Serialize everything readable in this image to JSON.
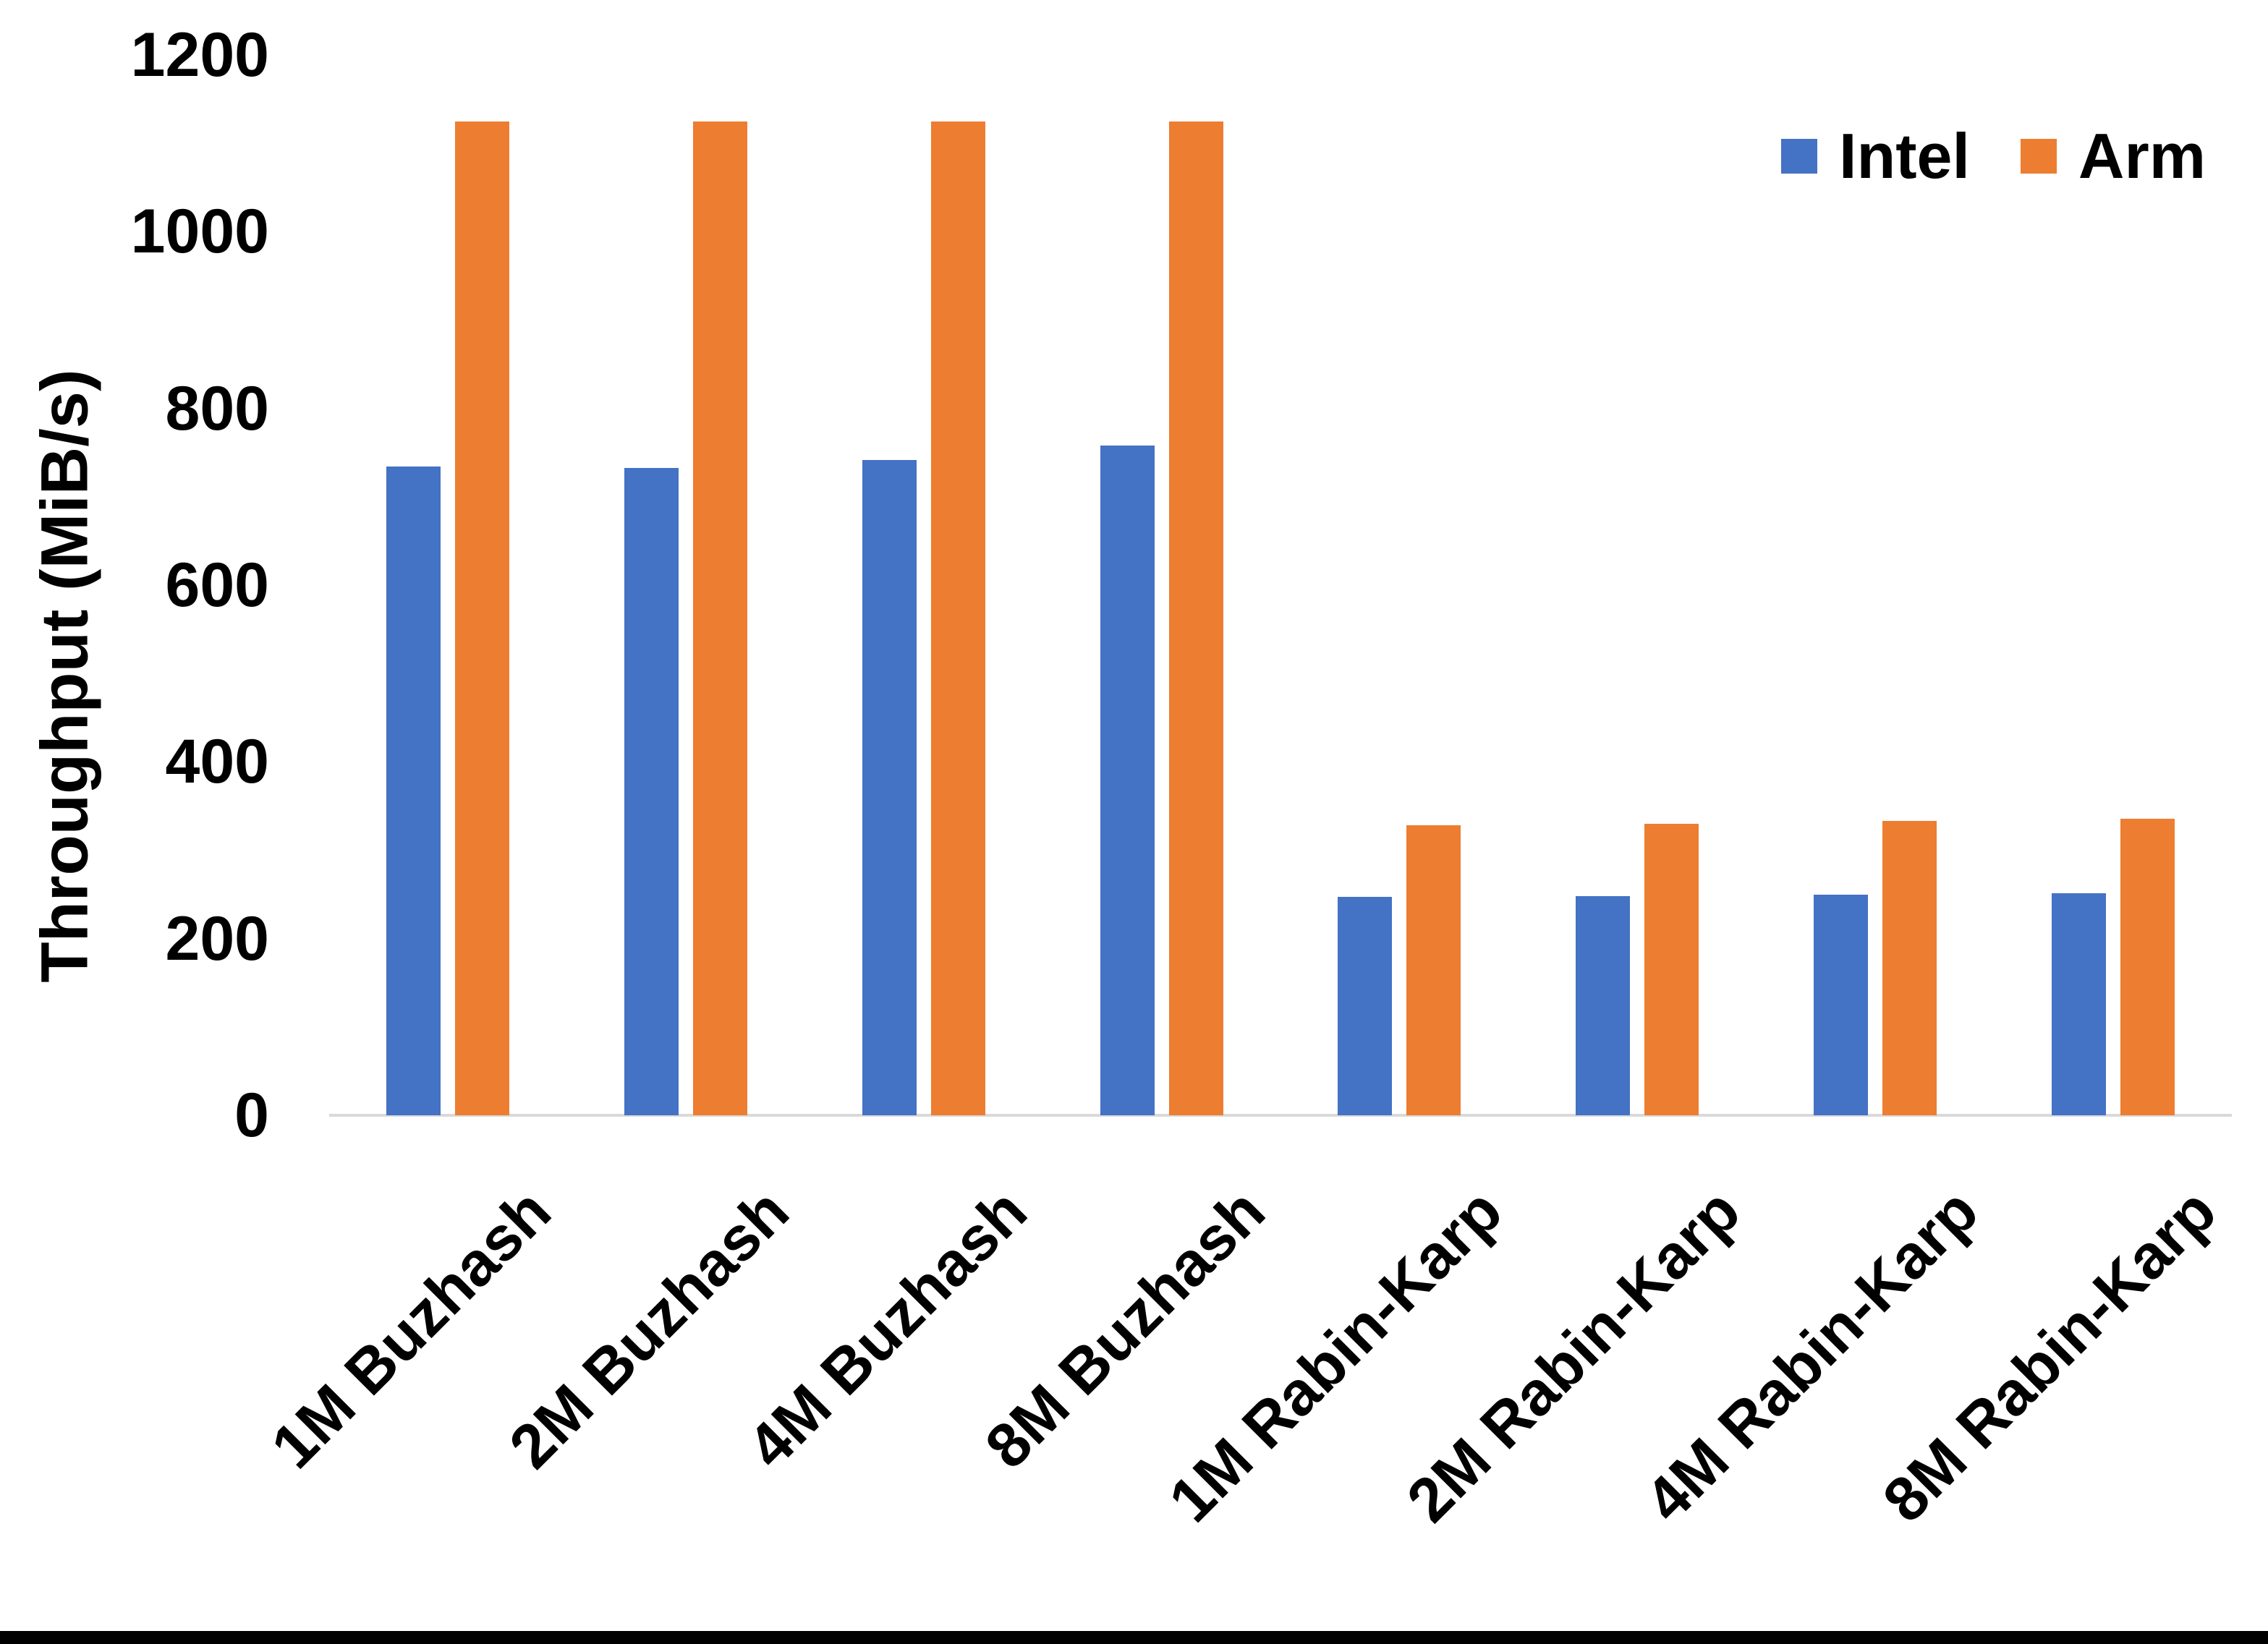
{
  "chart_data": {
    "type": "bar",
    "title": "",
    "ylabel": "Throughput (MiB/s)",
    "xlabel": "",
    "ylim": [
      0,
      1200
    ],
    "ytick_step": 200,
    "yticks": [
      0,
      200,
      400,
      600,
      800,
      1000,
      1200
    ],
    "grid": false,
    "legend_position": "top-right",
    "categories": [
      "1M Buzhash",
      "2M Buzhash",
      "4M Buzhash",
      "8M Buzhash",
      "1M Rabin-Karp",
      "2M Rabin-Karp",
      "4M Rabin-Karp",
      "8M Rabin-Karp"
    ],
    "series": [
      {
        "name": "Intel",
        "color": "#4472C4",
        "values": [
          734,
          733,
          742,
          758,
          247,
          248,
          250,
          251
        ]
      },
      {
        "name": "Arm",
        "color": "#ED7D31",
        "values": [
          1125,
          1125,
          1125,
          1125,
          328,
          330,
          333,
          336
        ]
      }
    ]
  },
  "legend": {
    "items": [
      {
        "label": "Intel",
        "color": "#4472C4"
      },
      {
        "label": "Arm",
        "color": "#ED7D31"
      }
    ]
  },
  "colors": {
    "axis_line": "#d9d9d9",
    "text": "#000000",
    "background": "#ffffff",
    "bottom_edge": "#000000"
  }
}
